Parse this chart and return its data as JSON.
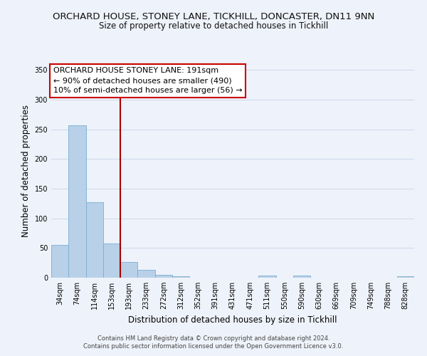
{
  "title": "ORCHARD HOUSE, STONEY LANE, TICKHILL, DONCASTER, DN11 9NN",
  "subtitle": "Size of property relative to detached houses in Tickhill",
  "xlabel": "Distribution of detached houses by size in Tickhill",
  "ylabel": "Number of detached properties",
  "bar_labels": [
    "34sqm",
    "74sqm",
    "114sqm",
    "153sqm",
    "193sqm",
    "233sqm",
    "272sqm",
    "312sqm",
    "352sqm",
    "391sqm",
    "431sqm",
    "471sqm",
    "511sqm",
    "550sqm",
    "590sqm",
    "630sqm",
    "669sqm",
    "709sqm",
    "749sqm",
    "788sqm",
    "828sqm"
  ],
  "bar_values": [
    55,
    257,
    127,
    58,
    27,
    13,
    5,
    2,
    0,
    0,
    0,
    0,
    4,
    0,
    4,
    0,
    0,
    0,
    0,
    0,
    3
  ],
  "bar_color": "#b8d0e8",
  "bar_edge_color": "#7aaed0",
  "vline_color": "#aa0000",
  "annotation_line1": "ORCHARD HOUSE STONEY LANE: 191sqm",
  "annotation_line2": "← 90% of detached houses are smaller (490)",
  "annotation_line3": "10% of semi-detached houses are larger (56) →",
  "annotation_box_color": "#ffffff",
  "annotation_box_edge": "#cc0000",
  "ylim": [
    0,
    360
  ],
  "yticks": [
    0,
    50,
    100,
    150,
    200,
    250,
    300,
    350
  ],
  "bg_color": "#eef2fa",
  "footer1": "Contains HM Land Registry data © Crown copyright and database right 2024.",
  "footer2": "Contains public sector information licensed under the Open Government Licence v3.0.",
  "title_fontsize": 9.5,
  "subtitle_fontsize": 8.5,
  "annot_fontsize": 8.0,
  "ylabel_fontsize": 8.5,
  "xlabel_fontsize": 8.5,
  "tick_fontsize": 7.0,
  "footer_fontsize": 6.0
}
